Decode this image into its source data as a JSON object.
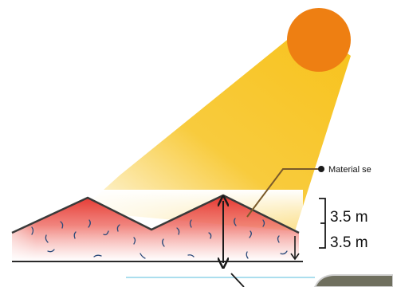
{
  "callout": {
    "label": "Material se"
  },
  "dimensions": {
    "upper": "3.5 m",
    "lower": "3.5 m"
  },
  "colors": {
    "sun": "#EE7F12",
    "beam": "#F7C21B",
    "roof_line": "#3a3a3a",
    "heat_top": "#E5352E",
    "heat_bottom": "#FFFFFF",
    "floor_accent": "#8FD3E8",
    "callout_line": "#7a5a2a"
  },
  "icons": {
    "sun": "sun-icon",
    "callout_marker": "dot-marker-icon"
  }
}
